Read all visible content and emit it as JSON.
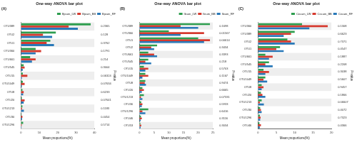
{
  "chart_data": [
    {
      "type": "bar",
      "orientation": "horizontal",
      "title": "One-way ANOVA bar plot",
      "annotation": "(A)",
      "x_label": "Mean proportions(%)",
      "p_label": "P-value",
      "legend": "upper right",
      "grid": false,
      "categories": [
        "OTU389",
        "OTU2",
        "OTU1",
        "OTU360",
        "OTU661",
        "OTU545",
        "OTU15",
        "OTU1049",
        "OTU8",
        "OTU20",
        "OTU1213",
        "OTU30",
        "OTU1296"
      ],
      "p_values": [
        0.2365,
        0.128,
        0.3762,
        0.1791,
        0.214,
        0.3004,
        0.06324,
        0.07634,
        0.6233,
        0.07641,
        0.1183,
        0.4454,
        0.5714
      ],
      "xlim": [
        0,
        40
      ],
      "xticks": [
        0,
        10,
        20,
        30,
        40
      ],
      "series": [
        {
          "name": "Bjeum_LW",
          "color": "#2e9e4f",
          "values": [
            38,
            19,
            16,
            8,
            5,
            1.5,
            1,
            1,
            0.8,
            0.5,
            0.8,
            0.3,
            1.2
          ]
        },
        {
          "name": "Bjeum_BB",
          "color": "#d63a2f",
          "values": [
            26,
            12,
            14,
            11,
            8,
            2,
            3.5,
            2,
            1.5,
            2,
            0.6,
            0.8,
            0.4
          ]
        },
        {
          "name": "Bjeum_RF",
          "color": "#2878b8",
          "values": [
            31,
            17,
            18,
            8,
            6,
            1,
            0.5,
            0.5,
            1.2,
            1.5,
            1.6,
            0.6,
            0.3
          ]
        }
      ]
    },
    {
      "type": "bar",
      "orientation": "horizontal",
      "title": "One-way ANOVA bar plot",
      "annotation": "(B)",
      "x_label": "Mean proportions(%)",
      "p_label": "P-value",
      "legend": "upper right",
      "grid": false,
      "categories": [
        "OTU389",
        "OTU360",
        "OTU1",
        "OTU2",
        "OTU661",
        "OTU545",
        "OTU15",
        "OTU1049",
        "OTU8",
        "OTU20",
        "OTU1213",
        "OTU30",
        "OTU1296",
        "OTU46",
        "OTU53"
      ],
      "p_values": [
        0.1698,
        0.01567,
        0.00614,
        0.3434,
        0.3393,
        0.218,
        0.5703,
        0.1167,
        0.9474,
        0.6665,
        0.07331,
        0.5933,
        0.6416,
        0.3116,
        0.3034
      ],
      "xlim": [
        0,
        25
      ],
      "xticks": [
        0,
        5,
        10,
        15,
        20,
        25
      ],
      "series": [
        {
          "name": "Ileum_LW",
          "color": "#2e9e4f",
          "values": [
            24,
            10,
            20,
            6,
            3,
            3,
            1.5,
            2,
            2,
            1,
            1.5,
            0.6,
            3,
            0.5,
            0.3
          ]
        },
        {
          "name": "Ileum_BB",
          "color": "#d63a2f",
          "values": [
            14,
            22,
            24,
            4,
            5,
            2,
            3,
            3,
            1.8,
            1.5,
            0.5,
            1,
            1,
            0.8,
            0.6
          ]
        },
        {
          "name": "Ileum_RF",
          "color": "#2878b8",
          "values": [
            20,
            14,
            22,
            5,
            6,
            4,
            2,
            1,
            2.2,
            0.8,
            1,
            0.8,
            2,
            0.4,
            0.4
          ]
        }
      ]
    },
    {
      "type": "bar",
      "orientation": "horizontal",
      "title": "One-way ANOVA bar plot",
      "annotation": "(C)",
      "x_label": "Mean proportions(%)",
      "p_label": "P-value",
      "legend": "upper right",
      "grid": false,
      "categories": [
        "OTU360",
        "OTU389",
        "OTU2",
        "OTU1",
        "OTU661",
        "OTU545",
        "OTU15",
        "OTU1049",
        "OTU8",
        "OTU20",
        "OTU1213",
        "OTU30",
        "OTU1296",
        "OTU46"
      ],
      "p_values": [
        0.1308,
        0.6623,
        0.7371,
        0.4547,
        0.1887,
        0.2208,
        0.3038,
        0.5607,
        0.9457,
        0.1866,
        0.06607,
        0.4072,
        0.7323,
        0.4366
      ],
      "xlim": [
        0,
        20
      ],
      "xticks": [
        0,
        5,
        10,
        15,
        20
      ],
      "series": [
        {
          "name": "Cecum_LW",
          "color": "#2e9e4f",
          "values": [
            12,
            10,
            8,
            6,
            2,
            3,
            1.5,
            2,
            1,
            0.8,
            1,
            0.6,
            0.5,
            0.4
          ]
        },
        {
          "name": "Cecum_BB",
          "color": "#d63a2f",
          "values": [
            19,
            9,
            9,
            5,
            4,
            2,
            3,
            1.5,
            1.5,
            1.2,
            0.5,
            0.8,
            0.7,
            0.8
          ]
        },
        {
          "name": "Cecum_RF",
          "color": "#2878b8",
          "values": [
            14,
            7,
            10,
            7,
            3,
            4,
            2,
            2.5,
            1,
            2,
            1.6,
            1,
            0.6,
            0.5
          ]
        }
      ]
    }
  ]
}
